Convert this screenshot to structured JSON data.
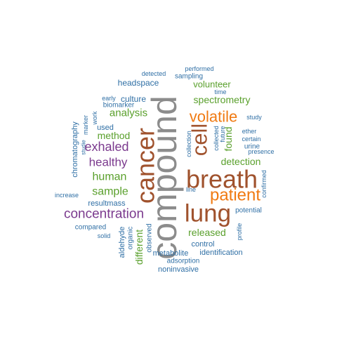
{
  "colors": {
    "gray": "#8c8c8c",
    "brown": "#a0522d",
    "orange": "#f07a12",
    "purple": "#7b3a8e",
    "green": "#5aa02c",
    "blue": "#2f6fa5"
  },
  "words": [
    {
      "text": "compound",
      "color": "gray",
      "rotated": true,
      "weight": 100
    },
    {
      "text": "breath",
      "color": "brown",
      "rotated": false,
      "weight": 62
    },
    {
      "text": "cancer",
      "color": "brown",
      "rotated": true,
      "weight": 62
    },
    {
      "text": "lung",
      "color": "brown",
      "rotated": false,
      "weight": 60
    },
    {
      "text": "cell",
      "color": "brown",
      "rotated": true,
      "weight": 55
    },
    {
      "text": "patient",
      "color": "orange",
      "rotated": false,
      "weight": 40
    },
    {
      "text": "volatile",
      "color": "orange",
      "rotated": false,
      "weight": 38
    },
    {
      "text": "concentration",
      "color": "purple",
      "rotated": false,
      "weight": 30
    },
    {
      "text": "exhaled",
      "color": "purple",
      "rotated": false,
      "weight": 28
    },
    {
      "text": "healthy",
      "color": "purple",
      "rotated": false,
      "weight": 26
    },
    {
      "text": "human",
      "color": "green",
      "rotated": false,
      "weight": 22
    },
    {
      "text": "sample",
      "color": "green",
      "rotated": false,
      "weight": 22
    },
    {
      "text": "analysis",
      "color": "green",
      "rotated": false,
      "weight": 21
    },
    {
      "text": "method",
      "color": "green",
      "rotated": false,
      "weight": 19
    },
    {
      "text": "detection",
      "color": "green",
      "rotated": false,
      "weight": 19
    },
    {
      "text": "released",
      "color": "green",
      "rotated": false,
      "weight": 18
    },
    {
      "text": "spectrometry",
      "color": "green",
      "rotated": false,
      "weight": 17
    },
    {
      "text": "volunteer",
      "color": "green",
      "rotated": false,
      "weight": 17
    },
    {
      "text": "different",
      "color": "green",
      "rotated": true,
      "weight": 18
    },
    {
      "text": "found",
      "color": "green",
      "rotated": true,
      "weight": 17
    },
    {
      "text": "headspace",
      "color": "blue",
      "rotated": false,
      "weight": 14
    },
    {
      "text": "culture",
      "color": "blue",
      "rotated": false,
      "weight": 14
    },
    {
      "text": "used",
      "color": "blue",
      "rotated": false,
      "weight": 13
    },
    {
      "text": "resultmass",
      "color": "blue",
      "rotated": false,
      "weight": 13
    },
    {
      "text": "control",
      "color": "blue",
      "rotated": false,
      "weight": 13
    },
    {
      "text": "metabolite",
      "color": "blue",
      "rotated": false,
      "weight": 13
    },
    {
      "text": "identification",
      "color": "blue",
      "rotated": false,
      "weight": 12
    },
    {
      "text": "noninvasive",
      "color": "blue",
      "rotated": false,
      "weight": 12
    },
    {
      "text": "adsorption",
      "color": "blue",
      "rotated": false,
      "weight": 11
    },
    {
      "text": "potential",
      "color": "blue",
      "rotated": false,
      "weight": 11
    },
    {
      "text": "compared",
      "color": "blue",
      "rotated": false,
      "weight": 11
    },
    {
      "text": "urine",
      "color": "blue",
      "rotated": false,
      "weight": 11
    },
    {
      "text": "certain",
      "color": "blue",
      "rotated": false,
      "weight": 10
    },
    {
      "text": "ether",
      "color": "blue",
      "rotated": false,
      "weight": 10
    },
    {
      "text": "presence",
      "color": "blue",
      "rotated": false,
      "weight": 10
    },
    {
      "text": "study",
      "color": "blue",
      "rotated": false,
      "weight": 9
    },
    {
      "text": "time",
      "color": "blue",
      "rotated": false,
      "weight": 9
    },
    {
      "text": "sampling",
      "color": "blue",
      "rotated": false,
      "weight": 10
    },
    {
      "text": "detected",
      "color": "blue",
      "rotated": false,
      "weight": 9
    },
    {
      "text": "performed",
      "color": "blue",
      "rotated": false,
      "weight": 9
    },
    {
      "text": "early",
      "color": "blue",
      "rotated": false,
      "weight": 9
    },
    {
      "text": "biomarker",
      "color": "blue",
      "rotated": false,
      "weight": 10
    },
    {
      "text": "increase",
      "color": "blue",
      "rotated": false,
      "weight": 9
    },
    {
      "text": "solid",
      "color": "blue",
      "rotated": false,
      "weight": 9
    },
    {
      "text": "line",
      "color": "blue",
      "rotated": false,
      "weight": 9
    },
    {
      "text": "chromatography",
      "color": "blue",
      "rotated": true,
      "weight": 12
    },
    {
      "text": "marker",
      "color": "blue",
      "rotated": true,
      "weight": 9
    },
    {
      "text": "work",
      "color": "blue",
      "rotated": true,
      "weight": 9
    },
    {
      "text": "studie",
      "color": "blue",
      "rotated": true,
      "weight": 8
    },
    {
      "text": "aldehyde",
      "color": "blue",
      "rotated": true,
      "weight": 12
    },
    {
      "text": "organic",
      "color": "blue",
      "rotated": true,
      "weight": 11
    },
    {
      "text": "observed",
      "color": "blue",
      "rotated": true,
      "weight": 11
    },
    {
      "text": "collection",
      "color": "blue",
      "rotated": true,
      "weight": 9
    },
    {
      "text": "future",
      "color": "blue",
      "rotated": true,
      "weight": 9
    },
    {
      "text": "collected",
      "color": "blue",
      "rotated": true,
      "weight": 9
    },
    {
      "text": "confirmed",
      "color": "blue",
      "rotated": true,
      "weight": 9
    },
    {
      "text": "profile",
      "color": "blue",
      "rotated": true,
      "weight": 9
    }
  ]
}
